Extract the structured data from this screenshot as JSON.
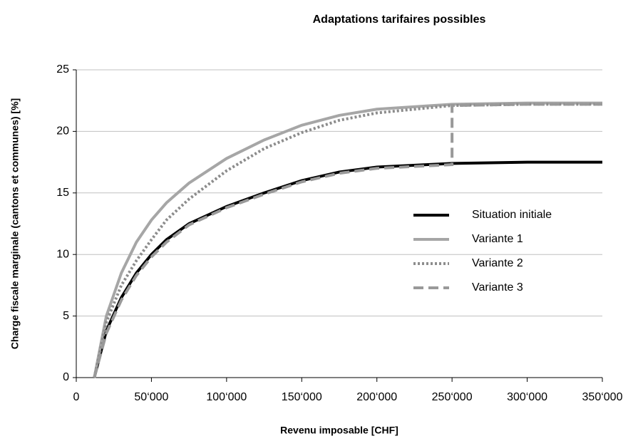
{
  "chart_data": {
    "type": "line",
    "title": "Adaptations tarifaires possibles",
    "x_label": "Revenu imposable [CHF]",
    "y_label": "Charge fiscale marginale (cantons et communes) [%]",
    "xlim": [
      0,
      350000
    ],
    "xticks": [
      0,
      {
        "value": 50000,
        "label": "50‘000"
      },
      {
        "value": 100000,
        "label": "100‘000"
      },
      {
        "value": 150000,
        "label": "150‘000"
      },
      {
        "value": 200000,
        "label": "200‘000"
      },
      {
        "value": 250000,
        "label": "250‘000"
      },
      {
        "value": 300000,
        "label": "300‘000"
      },
      {
        "value": 350000,
        "label": "350‘000"
      }
    ],
    "ylim": [
      0,
      25
    ],
    "yticks": [
      0,
      5,
      10,
      15,
      20,
      25
    ],
    "grid": true,
    "legend": "right",
    "series": [
      {
        "name": "Situation initiale",
        "color": "#000000",
        "style": "solid",
        "x": [
          12000,
          20000,
          30000,
          40000,
          50000,
          60000,
          75000,
          100000,
          125000,
          150000,
          175000,
          200000,
          250000,
          300000,
          350000
        ],
        "values": [
          0,
          3.8,
          6.5,
          8.5,
          10,
          11.2,
          12.5,
          13.9,
          15,
          16,
          16.7,
          17.1,
          17.4,
          17.5,
          17.5
        ]
      },
      {
        "name": "Variante 1",
        "color": "#a6a6a6",
        "style": "solid",
        "x": [
          12000,
          20000,
          30000,
          40000,
          50000,
          60000,
          75000,
          100000,
          125000,
          150000,
          175000,
          200000,
          250000,
          300000,
          350000
        ],
        "values": [
          0,
          5,
          8.5,
          11,
          12.8,
          14.2,
          15.8,
          17.8,
          19.3,
          20.5,
          21.3,
          21.8,
          22.2,
          22.3,
          22.3
        ]
      },
      {
        "name": "Variante 2",
        "color": "#8c8c8c",
        "style": "dotted",
        "x": [
          12000,
          20000,
          30000,
          40000,
          50000,
          60000,
          75000,
          100000,
          125000,
          150000,
          175000,
          200000,
          250000,
          300000,
          350000
        ],
        "values": [
          0,
          4.5,
          7.5,
          9.5,
          11.2,
          12.8,
          14.5,
          16.8,
          18.6,
          19.9,
          20.9,
          21.5,
          22.1,
          22.2,
          22.2
        ]
      },
      {
        "name": "Variante 3",
        "color": "#999999",
        "style": "dashed",
        "x": [
          12000,
          20000,
          30000,
          40000,
          50000,
          60000,
          75000,
          100000,
          125000,
          150000,
          175000,
          200000,
          250000,
          250000,
          300000,
          350000
        ],
        "values": [
          0,
          3.6,
          6.3,
          8.3,
          9.8,
          11,
          12.4,
          13.8,
          14.9,
          15.9,
          16.6,
          17,
          17.3,
          22.1,
          22.2,
          22.2
        ]
      }
    ]
  }
}
